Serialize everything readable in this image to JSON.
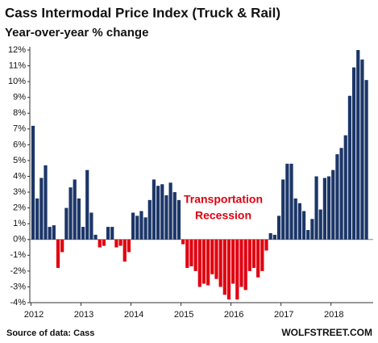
{
  "chart_data": {
    "type": "bar",
    "title": "Cass Intermodal Price Index (Truck & Rail)",
    "subtitle": "Year-over-year % change",
    "annotation": [
      "Transportation",
      "Recession"
    ],
    "source": "Source of data: Cass",
    "credit": "WOLFSTREET.COM",
    "color": "#1c3668",
    "negative_color": "#e00010",
    "annotation_color": "#e00010",
    "categories": [
      "2012",
      null,
      null,
      null,
      null,
      null,
      null,
      null,
      null,
      null,
      null,
      null,
      "2013",
      null,
      null,
      null,
      null,
      null,
      null,
      null,
      null,
      null,
      null,
      null,
      "2014",
      null,
      null,
      null,
      null,
      null,
      null,
      null,
      null,
      null,
      null,
      null,
      "2015",
      null,
      null,
      null,
      null,
      null,
      null,
      null,
      null,
      null,
      null,
      null,
      "2016",
      null,
      null,
      null,
      null,
      null,
      null,
      null,
      null,
      null,
      null,
      null,
      "2017",
      null,
      null,
      null,
      null,
      null,
      null,
      null,
      null,
      null,
      null,
      null,
      "2018",
      null,
      null,
      null,
      null,
      null,
      null,
      null,
      null
    ],
    "values": [
      7.2,
      2.6,
      3.9,
      4.7,
      0.8,
      0.9,
      -1.8,
      -0.8,
      2.0,
      3.3,
      3.8,
      2.6,
      0.8,
      4.4,
      1.7,
      0.3,
      -0.5,
      -0.4,
      0.8,
      0.8,
      -0.5,
      -0.4,
      -1.4,
      -0.8,
      1.7,
      1.5,
      1.8,
      1.4,
      2.5,
      3.8,
      3.4,
      3.5,
      2.8,
      3.6,
      3.0,
      2.5,
      -0.3,
      -1.8,
      -1.7,
      -2.0,
      -3.0,
      -2.8,
      -2.9,
      -2.2,
      -2.5,
      -3.0,
      -3.5,
      -3.8,
      -2.8,
      -3.8,
      -3.0,
      -3.2,
      -2.0,
      -1.8,
      -2.4,
      -2.0,
      -0.7,
      0.4,
      0.3,
      1.5,
      3.8,
      4.8,
      4.8,
      2.6,
      2.3,
      1.8,
      0.6,
      1.3,
      4.0,
      1.9,
      3.9,
      4.0,
      4.4,
      5.4,
      5.8,
      6.6,
      9.1,
      10.9,
      12.0,
      11.4,
      10.1
    ],
    "ylim": [
      -4,
      12
    ],
    "yticks": [
      {
        "value": -4,
        "label": "-4%"
      },
      {
        "value": -3,
        "label": "-3%"
      },
      {
        "value": -2,
        "label": "-2%"
      },
      {
        "value": -1,
        "label": "-1%"
      },
      {
        "value": 0,
        "label": "0%"
      },
      {
        "value": 1,
        "label": "1%"
      },
      {
        "value": 2,
        "label": "2%"
      },
      {
        "value": 3,
        "label": "3%"
      },
      {
        "value": 4,
        "label": "4%"
      },
      {
        "value": 5,
        "label": "5%"
      },
      {
        "value": 6,
        "label": "6%"
      },
      {
        "value": 7,
        "label": "7%"
      },
      {
        "value": 8,
        "label": "8%"
      },
      {
        "value": 9,
        "label": "9%"
      },
      {
        "value": 10,
        "label": "10%"
      },
      {
        "value": 11,
        "label": "11%"
      },
      {
        "value": 12,
        "label": "12%"
      }
    ],
    "grid": false
  }
}
